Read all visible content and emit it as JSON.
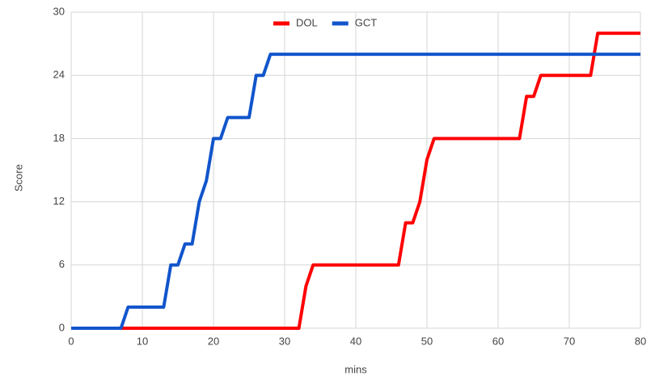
{
  "chart_data": {
    "type": "line",
    "x_label": "mins",
    "y_label": "Score",
    "xlim": [
      0,
      80
    ],
    "xticks": [
      0,
      10,
      20,
      30,
      40,
      50,
      60,
      70,
      80
    ],
    "ylim": [
      0,
      30
    ],
    "yticks": [
      0,
      6,
      12,
      18,
      24,
      30
    ],
    "grid": true,
    "legend": "top",
    "series": [
      {
        "name": "DOL",
        "color": "#ff0000",
        "x": [
          0,
          32,
          33,
          34,
          46,
          47,
          48,
          49,
          50,
          51,
          63,
          64,
          65,
          66,
          73,
          74,
          80
        ],
        "values": [
          0,
          0,
          4,
          6,
          6,
          10,
          10,
          12,
          16,
          18,
          18,
          22,
          22,
          24,
          24,
          28,
          28
        ]
      },
      {
        "name": "GCT",
        "color": "#1155cc",
        "x": [
          0,
          7,
          8,
          13,
          14,
          15,
          16,
          17,
          18,
          19,
          20,
          21,
          22,
          25,
          26,
          27,
          28,
          80
        ],
        "values": [
          0,
          0,
          2,
          2,
          6,
          6,
          8,
          8,
          12,
          14,
          18,
          18,
          20,
          20,
          24,
          24,
          26,
          26
        ]
      }
    ]
  }
}
